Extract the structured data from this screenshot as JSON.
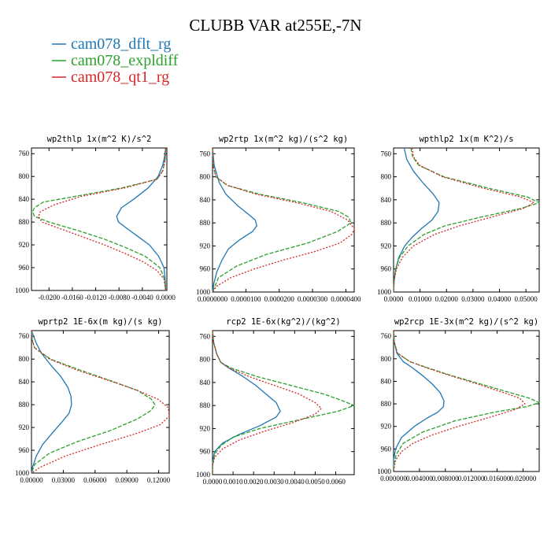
{
  "title": "CLUBB VAR at255E,-7N",
  "legend": [
    {
      "label": "cam078_dflt_rg",
      "color": "#1f77b4",
      "dash": "solid"
    },
    {
      "label": "cam078_expldiff",
      "color": "#2ca02c",
      "dash": "dashed"
    },
    {
      "label": "cam078_qt1_rg",
      "color": "#d62728",
      "dash": "dotted"
    }
  ],
  "chart_data": [
    {
      "type": "line",
      "title": "wp2thlp  1x(m^2 K)/s^2",
      "xlim": [
        -0.023,
        0.0002
      ],
      "ylim": [
        1000,
        750
      ],
      "xticks": [
        -0.02,
        -0.016,
        -0.012,
        -0.008,
        -0.004,
        0.0
      ],
      "xtick_labels": [
        "-0.0200",
        "-0.0160",
        "-0.0120",
        "-0.0080",
        "-0.0040",
        "0.0000"
      ],
      "yticks": [
        760,
        800,
        840,
        880,
        920,
        960,
        1000
      ],
      "series": [
        {
          "name": "cam078_dflt_rg",
          "y": [
            750,
            765,
            780,
            800,
            820,
            840,
            855,
            870,
            880,
            890,
            905,
            920,
            940,
            960,
            980,
            1000
          ],
          "x": [
            0.0,
            -0.0002,
            -0.0005,
            -0.0013,
            -0.003,
            -0.0055,
            -0.0076,
            -0.0084,
            -0.0081,
            -0.0068,
            -0.0048,
            -0.0028,
            -0.0012,
            -0.0003,
            -0.0001,
            0.0
          ]
        },
        {
          "name": "cam078_expldiff",
          "y": [
            750,
            770,
            790,
            805,
            820,
            835,
            845,
            855,
            862,
            870,
            880,
            895,
            910,
            925,
            940,
            960,
            980,
            1000
          ],
          "x": [
            0.0,
            -0.0001,
            -0.0005,
            -0.0015,
            -0.0075,
            -0.0155,
            -0.021,
            -0.0225,
            -0.0228,
            -0.0225,
            -0.02,
            -0.015,
            -0.0105,
            -0.0068,
            -0.0035,
            -0.001,
            -0.0002,
            0.0
          ]
        },
        {
          "name": "cam078_qt1_rg",
          "y": [
            750,
            770,
            790,
            805,
            820,
            835,
            850,
            862,
            870,
            880,
            890,
            905,
            920,
            935,
            950,
            965,
            980,
            1000
          ],
          "x": [
            0.0,
            -0.0001,
            -0.0005,
            -0.0015,
            -0.007,
            -0.0145,
            -0.0192,
            -0.0215,
            -0.0218,
            -0.0212,
            -0.0185,
            -0.0145,
            -0.0105,
            -0.007,
            -0.0038,
            -0.0015,
            -0.0003,
            0.0
          ]
        }
      ]
    },
    {
      "type": "line",
      "title": "wp2rtp  1x(m^2 kg)/(s^2 kg)",
      "xlim": [
        0.0,
        4.25e-05
      ],
      "ylim": [
        1000,
        750
      ],
      "xticks": [
        0.0,
        1e-05,
        2e-05,
        3e-05,
        4e-05
      ],
      "xtick_labels": [
        "0.0000000",
        "0.0000100",
        "0.0000200",
        "0.0000300",
        "0.0000400"
      ],
      "yticks": [
        760,
        800,
        840,
        880,
        920,
        960,
        1000
      ],
      "series": [
        {
          "name": "cam078_dflt_rg",
          "y": [
            750,
            780,
            810,
            830,
            850,
            865,
            875,
            885,
            895,
            910,
            925,
            945,
            965,
            985,
            1000
          ],
          "x": [
            0.0,
            5e-07,
            2e-06,
            4e-06,
            7.5e-06,
            1.08e-05,
            1.28e-05,
            1.33e-05,
            1.2e-05,
            8e-06,
            4.8e-06,
            2.8e-06,
            1.3e-06,
            4e-07,
            0.0
          ]
        },
        {
          "name": "cam078_expldiff",
          "y": [
            750,
            780,
            800,
            815,
            830,
            845,
            860,
            870,
            880,
            895,
            915,
            935,
            955,
            975,
            1000
          ],
          "x": [
            0.0,
            2e-07,
            1e-06,
            4.5e-06,
            1.4e-05,
            2.7e-05,
            3.78e-05,
            4.08e-05,
            4.15e-05,
            3.75e-05,
            2.85e-05,
            1.6e-05,
            7.2e-06,
            1.8e-06,
            0.0
          ]
        },
        {
          "name": "cam078_qt1_rg",
          "y": [
            750,
            780,
            800,
            815,
            830,
            845,
            860,
            875,
            890,
            900,
            915,
            930,
            945,
            960,
            975,
            990,
            1000
          ],
          "x": [
            0.0,
            2e-07,
            1e-06,
            4.5e-06,
            1.3e-05,
            2.52e-05,
            3.55e-05,
            4.05e-05,
            4.25e-05,
            4.18e-05,
            3.82e-05,
            3.05e-05,
            2.1e-05,
            1.25e-05,
            5.5e-06,
            1.2e-06,
            0.0
          ]
        }
      ]
    },
    {
      "type": "line",
      "title": "wpthlp2  1x(m K^2)/s",
      "xlim": [
        0.0,
        0.055
      ],
      "ylim": [
        1000,
        750
      ],
      "xticks": [
        0.0,
        0.01,
        0.02,
        0.03,
        0.04,
        0.05
      ],
      "xtick_labels": [
        "0.0000",
        "0.01000",
        "0.02000",
        "0.03000",
        "0.04000",
        "0.05000"
      ],
      "yticks": [
        760,
        800,
        840,
        880,
        920,
        960,
        1000
      ],
      "series": [
        {
          "name": "cam078_dflt_rg",
          "y": [
            750,
            770,
            790,
            810,
            830,
            845,
            860,
            875,
            890,
            905,
            920,
            940,
            960,
            980,
            1000
          ],
          "x": [
            0.004,
            0.005,
            0.0075,
            0.011,
            0.015,
            0.0172,
            0.0168,
            0.0145,
            0.0105,
            0.007,
            0.0042,
            0.002,
            0.0008,
            0.0002,
            0.0
          ]
        },
        {
          "name": "cam078_expldiff",
          "y": [
            750,
            765,
            780,
            800,
            820,
            835,
            845,
            855,
            870,
            885,
            900,
            920,
            940,
            960,
            980,
            1000
          ],
          "x": [
            0.0065,
            0.0072,
            0.0095,
            0.019,
            0.036,
            0.0505,
            0.055,
            0.048,
            0.033,
            0.0195,
            0.0115,
            0.0055,
            0.0022,
            0.0008,
            0.0002,
            0.0
          ]
        },
        {
          "name": "cam078_qt1_rg",
          "y": [
            750,
            765,
            780,
            800,
            820,
            835,
            845,
            855,
            870,
            885,
            900,
            920,
            940,
            960,
            980,
            1000
          ],
          "x": [
            0.007,
            0.0075,
            0.0098,
            0.0185,
            0.034,
            0.048,
            0.053,
            0.049,
            0.037,
            0.025,
            0.0155,
            0.0075,
            0.0033,
            0.0011,
            0.0002,
            0.0
          ]
        }
      ]
    },
    {
      "type": "line",
      "title": "wprtp2  1E-6x(m kg)/(s kg)",
      "xlim": [
        0.0,
        0.13
      ],
      "ylim": [
        1000,
        750
      ],
      "xticks": [
        0.0,
        0.03,
        0.06,
        0.09,
        0.12
      ],
      "xtick_labels": [
        "0.00000",
        "0.03000",
        "0.06000",
        "0.09000",
        "0.12000"
      ],
      "yticks": [
        760,
        800,
        840,
        880,
        920,
        960,
        1000
      ],
      "series": [
        {
          "name": "cam078_dflt_rg",
          "y": [
            750,
            770,
            790,
            810,
            830,
            850,
            865,
            880,
            895,
            910,
            930,
            950,
            970,
            990,
            1000
          ],
          "x": [
            0.0,
            0.004,
            0.0095,
            0.018,
            0.0275,
            0.0345,
            0.0372,
            0.0378,
            0.0355,
            0.029,
            0.0195,
            0.0105,
            0.0045,
            0.001,
            0.0
          ]
        },
        {
          "name": "cam078_expldiff",
          "y": [
            750,
            765,
            780,
            800,
            820,
            840,
            855,
            870,
            880,
            890,
            905,
            925,
            945,
            965,
            985,
            1000
          ],
          "x": [
            0.0,
            0.0005,
            0.0028,
            0.018,
            0.047,
            0.078,
            0.1,
            0.113,
            0.1165,
            0.113,
            0.1,
            0.075,
            0.043,
            0.017,
            0.003,
            0.0
          ]
        },
        {
          "name": "cam078_qt1_rg",
          "y": [
            750,
            765,
            780,
            800,
            820,
            840,
            855,
            870,
            885,
            900,
            915,
            930,
            950,
            970,
            990,
            1000
          ],
          "x": [
            0.0,
            0.0005,
            0.0028,
            0.017,
            0.044,
            0.077,
            0.1,
            0.119,
            0.129,
            0.13,
            0.1215,
            0.1,
            0.065,
            0.032,
            0.008,
            0.0
          ]
        }
      ]
    },
    {
      "type": "line",
      "title": "rcp2  1E-6x(kg^2)/(kg^2)",
      "xlim": [
        0.0,
        0.0069
      ],
      "ylim": [
        1000,
        750
      ],
      "xticks": [
        0.0,
        0.001,
        0.002,
        0.003,
        0.004,
        0.005,
        0.006
      ],
      "xtick_labels": [
        "0.0000",
        "0.0010",
        "0.0020",
        "0.0030",
        "0.0040",
        "0.0050",
        "0.0060"
      ],
      "yticks": [
        760,
        800,
        840,
        880,
        920,
        960,
        1000
      ],
      "series": [
        {
          "name": "cam078_dflt_rg",
          "y": [
            750,
            770,
            790,
            805,
            815,
            830,
            845,
            860,
            875,
            890,
            900,
            915,
            930,
            945,
            960,
            980,
            1000
          ],
          "x": [
            0.0,
            5e-05,
            0.0002,
            0.0004,
            0.0008,
            0.0015,
            0.0021,
            0.0026,
            0.0031,
            0.0033,
            0.0031,
            0.0023,
            0.0013,
            0.0005,
            0.0001,
            0.0,
            0.0
          ]
        },
        {
          "name": "cam078_expldiff",
          "y": [
            750,
            770,
            790,
            805,
            815,
            830,
            845,
            860,
            870,
            880,
            890,
            905,
            920,
            935,
            950,
            965,
            985,
            1000
          ],
          "x": [
            0.0,
            5e-05,
            0.0002,
            0.0004,
            0.0009,
            0.0022,
            0.0038,
            0.0054,
            0.0062,
            0.0069,
            0.0061,
            0.0042,
            0.0023,
            0.001,
            0.0004,
            0.0001,
            0.0,
            0.0
          ]
        },
        {
          "name": "cam078_qt1_rg",
          "y": [
            750,
            770,
            790,
            805,
            815,
            830,
            845,
            860,
            875,
            885,
            895,
            910,
            925,
            940,
            955,
            970,
            985,
            1000
          ],
          "x": [
            0.0,
            5e-05,
            0.0002,
            0.0004,
            0.0008,
            0.0018,
            0.003,
            0.0042,
            0.005,
            0.0053,
            0.005,
            0.0039,
            0.0025,
            0.0013,
            0.0005,
            0.0001,
            0.0,
            0.0
          ]
        }
      ]
    },
    {
      "type": "line",
      "title": "wp2rcp  1E-3x(m^2 kg)/(s^2 kg)",
      "xlim": [
        0.0,
        0.0225
      ],
      "ylim": [
        1000,
        750
      ],
      "xticks": [
        0.0,
        0.004,
        0.008,
        0.012,
        0.016,
        0.02
      ],
      "xtick_labels": [
        "0.000000",
        "0.004000",
        "0.008000",
        "0.012000",
        "0.016000",
        "0.020000"
      ],
      "yticks": [
        760,
        800,
        840,
        880,
        920,
        960,
        1000
      ],
      "series": [
        {
          "name": "cam078_dflt_rg",
          "y": [
            750,
            770,
            790,
            805,
            815,
            830,
            845,
            860,
            875,
            885,
            895,
            905,
            920,
            940,
            960,
            980,
            1000
          ],
          "x": [
            0.0,
            0.0001,
            0.0005,
            0.0015,
            0.0028,
            0.0045,
            0.006,
            0.0072,
            0.0078,
            0.0077,
            0.0068,
            0.0052,
            0.0032,
            0.0012,
            0.0003,
            0.0,
            0.0
          ]
        },
        {
          "name": "cam078_expldiff",
          "y": [
            750,
            770,
            790,
            805,
            815,
            830,
            845,
            860,
            870,
            878,
            885,
            895,
            910,
            930,
            950,
            970,
            990,
            1000
          ],
          "x": [
            0.0,
            0.0001,
            0.0006,
            0.0025,
            0.005,
            0.009,
            0.0135,
            0.018,
            0.021,
            0.0225,
            0.0205,
            0.0155,
            0.0095,
            0.0045,
            0.0015,
            0.0004,
            0.0,
            0.0
          ]
        },
        {
          "name": "cam078_qt1_rg",
          "y": [
            750,
            770,
            790,
            805,
            815,
            830,
            845,
            860,
            870,
            880,
            890,
            905,
            920,
            935,
            950,
            965,
            980,
            1000
          ],
          "x": [
            0.0,
            0.0001,
            0.0006,
            0.0025,
            0.0048,
            0.0088,
            0.013,
            0.017,
            0.0195,
            0.0203,
            0.0188,
            0.0145,
            0.01,
            0.006,
            0.003,
            0.0012,
            0.0003,
            0.0
          ]
        }
      ]
    }
  ]
}
